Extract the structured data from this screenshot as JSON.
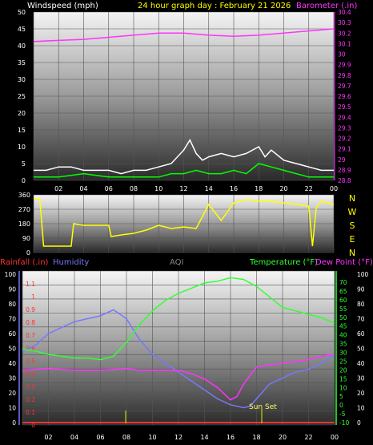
{
  "header": {
    "left_label": "Windspeed (mph)",
    "center_label": "24 hour graph day : February 21 2026",
    "right_label": "Barometer (.in)"
  },
  "x_ticks": [
    "02",
    "04",
    "06",
    "08",
    "10",
    "12",
    "14",
    "16",
    "18",
    "20",
    "22",
    "00"
  ],
  "colors": {
    "wind_label": "#ffffff",
    "title": "#ffff00",
    "barometer": "#ff33ff",
    "gust": "#ffffff",
    "avg": "#00ff00",
    "direction": "#ffff00",
    "rain": "#ff3333",
    "humidity": "#7777ff",
    "temperature": "#33ff33",
    "dewpoint": "#ff33ff",
    "sunset": "#cccc00"
  },
  "chart_data": [
    {
      "type": "line",
      "name": "wind-barometer",
      "x_hours": [
        0,
        2,
        4,
        6,
        8,
        10,
        12,
        14,
        16,
        18,
        20,
        22,
        24
      ],
      "wind_ylim": [
        0,
        50
      ],
      "wind_ticks": [
        "50",
        "45",
        "40",
        "35",
        "30",
        "25",
        "20",
        "15",
        "10",
        "5",
        "0"
      ],
      "baro_ylim": [
        28.8,
        30.4
      ],
      "baro_ticks": [
        "30.4",
        "30.3",
        "30.2",
        "30.1",
        "30",
        "29.9",
        "29.8",
        "29.7",
        "29.6",
        "29.5",
        "29.4",
        "29.3",
        "29.2",
        "29.1",
        "29",
        "28.9",
        "28.8"
      ],
      "series": [
        {
          "name": "Barometer (.in)",
          "hours": [
            0,
            2,
            4,
            6,
            8,
            10,
            12,
            14,
            16,
            18,
            20,
            22,
            24
          ],
          "values": [
            30.12,
            30.13,
            30.14,
            30.16,
            30.18,
            30.2,
            30.2,
            30.18,
            30.17,
            30.18,
            30.2,
            30.22,
            30.24
          ]
        },
        {
          "name": "gust",
          "hours": [
            0,
            1,
            2,
            3,
            4,
            5,
            6,
            7,
            8,
            9,
            10,
            11,
            12,
            12.5,
            13,
            13.5,
            14,
            15,
            16,
            17,
            18,
            18.5,
            19,
            20,
            21,
            22,
            23,
            24
          ],
          "values": [
            3,
            3,
            4,
            4,
            3,
            3,
            3,
            2,
            3,
            3,
            4,
            5,
            9,
            12,
            8,
            6,
            7,
            8,
            7,
            8,
            10,
            7,
            9,
            6,
            5,
            4,
            3,
            3
          ]
        },
        {
          "name": "average",
          "hours": [
            0,
            2,
            4,
            6,
            8,
            10,
            11,
            12,
            13,
            14,
            15,
            16,
            17,
            18,
            19,
            20,
            21,
            22,
            23,
            24
          ],
          "values": [
            1,
            1,
            2,
            1,
            1,
            1,
            2,
            2,
            3,
            2,
            2,
            3,
            2,
            5,
            4,
            3,
            2,
            1,
            1,
            1
          ]
        }
      ]
    },
    {
      "type": "line",
      "name": "wind-direction",
      "ylim": [
        0,
        360
      ],
      "y_ticks": [
        "360",
        "270",
        "180",
        "90",
        "0"
      ],
      "compass": [
        "N",
        "W",
        "S",
        "E",
        "N"
      ],
      "series": [
        {
          "name": "direction",
          "hours": [
            0,
            0.5,
            0.8,
            1,
            3,
            3.2,
            4,
            6,
            6.2,
            7,
            8,
            9,
            10,
            11,
            12,
            13,
            14,
            15,
            16,
            17,
            18,
            19,
            20,
            21,
            22,
            22.3,
            22.6,
            23,
            24
          ],
          "values": [
            340,
            330,
            40,
            40,
            40,
            180,
            170,
            170,
            100,
            110,
            120,
            140,
            170,
            150,
            160,
            150,
            300,
            200,
            310,
            330,
            320,
            320,
            310,
            300,
            290,
            40,
            280,
            320,
            300
          ]
        }
      ]
    },
    {
      "type": "line",
      "name": "rain-humidity-temp",
      "rain_ylim": [
        0,
        1.2
      ],
      "rain_ticks": [
        "1.1",
        "1",
        "0.9",
        "0.8",
        "0.7",
        "0.6",
        "0.5",
        "0.4",
        "0.3",
        "0.2",
        "0.1",
        "0"
      ],
      "humidity_ylim": [
        0,
        100
      ],
      "humidity_ticks": [
        "100",
        "90",
        "80",
        "70",
        "60",
        "50",
        "40",
        "30",
        "20",
        "10",
        "0"
      ],
      "temp_ylim": [
        -10,
        75
      ],
      "temp_ticks": [
        "70",
        "65",
        "60",
        "55",
        "50",
        "45",
        "40",
        "35",
        "30",
        "25",
        "20",
        "15",
        "10",
        "5",
        "0",
        "-5",
        "-10"
      ],
      "right_ticks": [
        "100",
        "90",
        "80",
        "70",
        "60",
        "50",
        "40",
        "30",
        "20",
        "10",
        "0"
      ],
      "series": [
        {
          "name": "Temperature (°F)",
          "hours": [
            0,
            1,
            2,
            3,
            4,
            5,
            6,
            7,
            8,
            9,
            10,
            11,
            12,
            13,
            14,
            15,
            16,
            17,
            18,
            19,
            20,
            21,
            22,
            23,
            24
          ],
          "values": [
            32,
            31,
            29,
            28,
            27,
            27,
            26,
            28,
            36,
            46,
            54,
            60,
            64,
            67,
            70,
            71,
            73,
            72,
            68,
            62,
            56,
            54,
            52,
            50,
            47
          ]
        },
        {
          "name": "Dew Point (°F)",
          "hours": [
            0,
            2,
            4,
            6,
            8,
            9,
            10,
            11,
            12,
            13,
            14,
            15,
            16,
            16.5,
            17,
            18,
            19,
            20,
            21,
            22,
            23,
            24
          ],
          "values": [
            20,
            21,
            20,
            20,
            21,
            20,
            20,
            20,
            20,
            18,
            15,
            10,
            3,
            5,
            12,
            22,
            23,
            24,
            25,
            26,
            28,
            29
          ]
        },
        {
          "name": "Humidity",
          "hours": [
            0,
            1,
            2,
            3,
            4,
            5,
            6,
            7,
            8,
            9,
            10,
            11,
            12,
            13,
            14,
            15,
            16,
            17,
            17.5,
            18,
            19,
            20,
            21,
            22,
            23,
            24
          ],
          "values": [
            48,
            52,
            60,
            64,
            68,
            70,
            72,
            76,
            70,
            56,
            46,
            40,
            34,
            28,
            22,
            16,
            12,
            10,
            11,
            16,
            26,
            30,
            34,
            36,
            40,
            46
          ]
        },
        {
          "name": "Rainfall (.in)",
          "hours": [
            0,
            24
          ],
          "values": [
            0,
            0
          ]
        }
      ],
      "annotation": {
        "text": "Sun Set",
        "hour": 18.4
      }
    }
  ],
  "middle_header": {
    "rain_label": "Rainfall (.in)",
    "humidity_label": "Humidity",
    "aqi_label": "AQI",
    "temp_label": "Temperature (°F)",
    "dew_label": "Dew Point (°F)"
  }
}
